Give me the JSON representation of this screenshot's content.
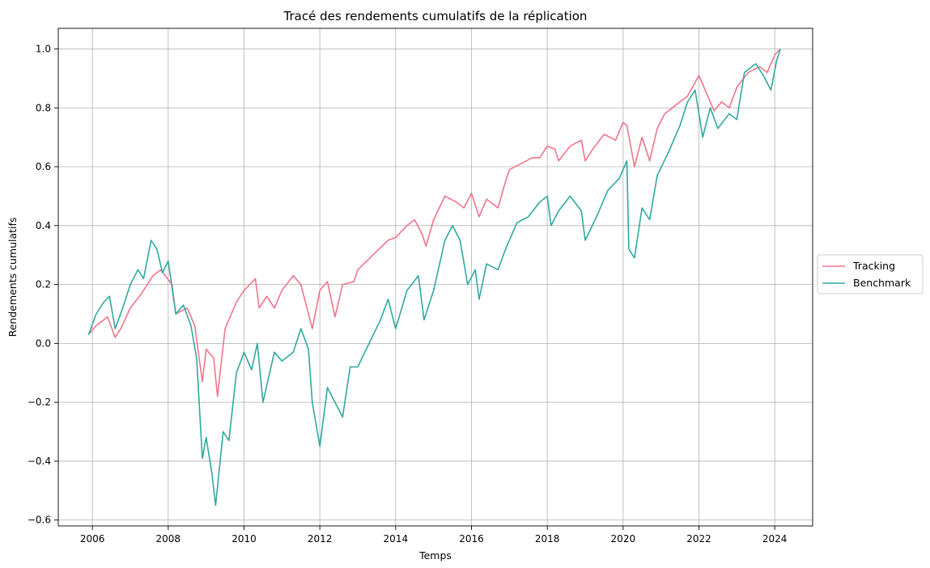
{
  "colors": {
    "tracking": "#f0758a",
    "benchmark": "#2fa9a1",
    "grid": "#b0b0b0",
    "axis": "#000000"
  },
  "chart_data": {
    "type": "line",
    "title": "Tracé des rendements cumulatifs de la réplication",
    "xlabel": "Temps",
    "ylabel": "Rendements cumulatifs",
    "xlim": [
      2005.1,
      2025.0
    ],
    "ylim": [
      -0.62,
      1.07
    ],
    "xticks": [
      2006,
      2008,
      2010,
      2012,
      2014,
      2016,
      2018,
      2020,
      2022,
      2024
    ],
    "xtick_labels": [
      "2006",
      "2008",
      "2010",
      "2012",
      "2014",
      "2016",
      "2018",
      "2020",
      "2022",
      "2024"
    ],
    "yticks": [
      -0.6,
      -0.4,
      -0.2,
      0.0,
      0.2,
      0.4,
      0.6,
      0.8,
      1.0
    ],
    "ytick_labels": [
      "−0.6",
      "−0.4",
      "−0.2",
      "0.0",
      "0.2",
      "0.4",
      "0.6",
      "0.8",
      "1.0"
    ],
    "grid": true,
    "legend": {
      "placement": "right-outside",
      "entries": [
        "Tracking",
        "Benchmark"
      ]
    },
    "series": [
      {
        "name": "Tracking",
        "color": "#f0758a",
        "points": [
          [
            2005.9,
            0.03
          ],
          [
            2006.1,
            0.06
          ],
          [
            2006.3,
            0.08
          ],
          [
            2006.4,
            0.09
          ],
          [
            2006.6,
            0.02
          ],
          [
            2006.75,
            0.05
          ],
          [
            2007.0,
            0.12
          ],
          [
            2007.3,
            0.17
          ],
          [
            2007.6,
            0.23
          ],
          [
            2007.8,
            0.25
          ],
          [
            2008.1,
            0.2
          ],
          [
            2008.2,
            0.1
          ],
          [
            2008.5,
            0.12
          ],
          [
            2008.7,
            0.06
          ],
          [
            2008.9,
            -0.13
          ],
          [
            2009.0,
            -0.02
          ],
          [
            2009.2,
            -0.05
          ],
          [
            2009.3,
            -0.18
          ],
          [
            2009.5,
            0.05
          ],
          [
            2009.8,
            0.14
          ],
          [
            2010.0,
            0.18
          ],
          [
            2010.3,
            0.22
          ],
          [
            2010.4,
            0.12
          ],
          [
            2010.6,
            0.16
          ],
          [
            2010.8,
            0.12
          ],
          [
            2011.0,
            0.18
          ],
          [
            2011.3,
            0.23
          ],
          [
            2011.5,
            0.2
          ],
          [
            2011.7,
            0.1
          ],
          [
            2011.8,
            0.05
          ],
          [
            2012.0,
            0.18
          ],
          [
            2012.2,
            0.21
          ],
          [
            2012.4,
            0.09
          ],
          [
            2012.6,
            0.2
          ],
          [
            2012.9,
            0.21
          ],
          [
            2013.0,
            0.25
          ],
          [
            2013.4,
            0.3
          ],
          [
            2013.8,
            0.35
          ],
          [
            2014.0,
            0.36
          ],
          [
            2014.3,
            0.4
          ],
          [
            2014.5,
            0.42
          ],
          [
            2014.7,
            0.37
          ],
          [
            2014.8,
            0.33
          ],
          [
            2015.0,
            0.42
          ],
          [
            2015.3,
            0.5
          ],
          [
            2015.6,
            0.48
          ],
          [
            2015.8,
            0.46
          ],
          [
            2016.0,
            0.51
          ],
          [
            2016.2,
            0.43
          ],
          [
            2016.4,
            0.49
          ],
          [
            2016.7,
            0.46
          ],
          [
            2016.9,
            0.55
          ],
          [
            2017.0,
            0.59
          ],
          [
            2017.3,
            0.61
          ],
          [
            2017.6,
            0.63
          ],
          [
            2017.8,
            0.63
          ],
          [
            2018.0,
            0.67
          ],
          [
            2018.2,
            0.66
          ],
          [
            2018.3,
            0.62
          ],
          [
            2018.6,
            0.67
          ],
          [
            2018.9,
            0.69
          ],
          [
            2019.0,
            0.62
          ],
          [
            2019.2,
            0.66
          ],
          [
            2019.5,
            0.71
          ],
          [
            2019.8,
            0.69
          ],
          [
            2020.0,
            0.75
          ],
          [
            2020.1,
            0.74
          ],
          [
            2020.3,
            0.6
          ],
          [
            2020.5,
            0.7
          ],
          [
            2020.7,
            0.62
          ],
          [
            2020.9,
            0.73
          ],
          [
            2021.1,
            0.78
          ],
          [
            2021.4,
            0.81
          ],
          [
            2021.7,
            0.84
          ],
          [
            2022.0,
            0.91
          ],
          [
            2022.2,
            0.85
          ],
          [
            2022.4,
            0.79
          ],
          [
            2022.6,
            0.82
          ],
          [
            2022.8,
            0.8
          ],
          [
            2023.0,
            0.87
          ],
          [
            2023.3,
            0.92
          ],
          [
            2023.6,
            0.94
          ],
          [
            2023.8,
            0.92
          ],
          [
            2024.0,
            0.98
          ],
          [
            2024.15,
            1.0
          ]
        ]
      },
      {
        "name": "Benchmark",
        "color": "#2fa9a1",
        "points": [
          [
            2005.9,
            0.03
          ],
          [
            2006.1,
            0.1
          ],
          [
            2006.3,
            0.14
          ],
          [
            2006.45,
            0.16
          ],
          [
            2006.6,
            0.05
          ],
          [
            2006.8,
            0.12
          ],
          [
            2007.0,
            0.2
          ],
          [
            2007.2,
            0.25
          ],
          [
            2007.35,
            0.22
          ],
          [
            2007.55,
            0.35
          ],
          [
            2007.7,
            0.32
          ],
          [
            2007.85,
            0.24
          ],
          [
            2008.0,
            0.28
          ],
          [
            2008.2,
            0.1
          ],
          [
            2008.4,
            0.13
          ],
          [
            2008.6,
            0.06
          ],
          [
            2008.75,
            -0.05
          ],
          [
            2008.9,
            -0.39
          ],
          [
            2009.0,
            -0.32
          ],
          [
            2009.15,
            -0.44
          ],
          [
            2009.25,
            -0.55
          ],
          [
            2009.45,
            -0.3
          ],
          [
            2009.6,
            -0.33
          ],
          [
            2009.8,
            -0.1
          ],
          [
            2010.0,
            -0.03
          ],
          [
            2010.2,
            -0.09
          ],
          [
            2010.35,
            0.0
          ],
          [
            2010.5,
            -0.2
          ],
          [
            2010.8,
            -0.03
          ],
          [
            2011.0,
            -0.06
          ],
          [
            2011.3,
            -0.03
          ],
          [
            2011.5,
            0.05
          ],
          [
            2011.7,
            -0.02
          ],
          [
            2011.8,
            -0.2
          ],
          [
            2012.0,
            -0.35
          ],
          [
            2012.2,
            -0.15
          ],
          [
            2012.4,
            -0.2
          ],
          [
            2012.6,
            -0.25
          ],
          [
            2012.8,
            -0.08
          ],
          [
            2013.0,
            -0.08
          ],
          [
            2013.3,
            0.0
          ],
          [
            2013.6,
            0.08
          ],
          [
            2013.8,
            0.15
          ],
          [
            2014.0,
            0.05
          ],
          [
            2014.3,
            0.18
          ],
          [
            2014.6,
            0.23
          ],
          [
            2014.75,
            0.08
          ],
          [
            2015.0,
            0.18
          ],
          [
            2015.3,
            0.35
          ],
          [
            2015.5,
            0.4
          ],
          [
            2015.7,
            0.35
          ],
          [
            2015.9,
            0.2
          ],
          [
            2016.1,
            0.25
          ],
          [
            2016.2,
            0.15
          ],
          [
            2016.4,
            0.27
          ],
          [
            2016.7,
            0.25
          ],
          [
            2016.9,
            0.32
          ],
          [
            2017.2,
            0.41
          ],
          [
            2017.5,
            0.43
          ],
          [
            2017.8,
            0.48
          ],
          [
            2018.0,
            0.5
          ],
          [
            2018.1,
            0.4
          ],
          [
            2018.3,
            0.45
          ],
          [
            2018.6,
            0.5
          ],
          [
            2018.9,
            0.45
          ],
          [
            2019.0,
            0.35
          ],
          [
            2019.3,
            0.43
          ],
          [
            2019.6,
            0.52
          ],
          [
            2019.9,
            0.56
          ],
          [
            2020.1,
            0.62
          ],
          [
            2020.15,
            0.32
          ],
          [
            2020.3,
            0.29
          ],
          [
            2020.5,
            0.46
          ],
          [
            2020.7,
            0.42
          ],
          [
            2020.9,
            0.57
          ],
          [
            2021.2,
            0.65
          ],
          [
            2021.5,
            0.74
          ],
          [
            2021.7,
            0.82
          ],
          [
            2021.9,
            0.86
          ],
          [
            2022.1,
            0.7
          ],
          [
            2022.3,
            0.8
          ],
          [
            2022.5,
            0.73
          ],
          [
            2022.8,
            0.78
          ],
          [
            2023.0,
            0.76
          ],
          [
            2023.2,
            0.92
          ],
          [
            2023.5,
            0.95
          ],
          [
            2023.7,
            0.91
          ],
          [
            2023.9,
            0.86
          ],
          [
            2024.05,
            0.96
          ],
          [
            2024.15,
            1.0
          ]
        ]
      }
    ]
  }
}
